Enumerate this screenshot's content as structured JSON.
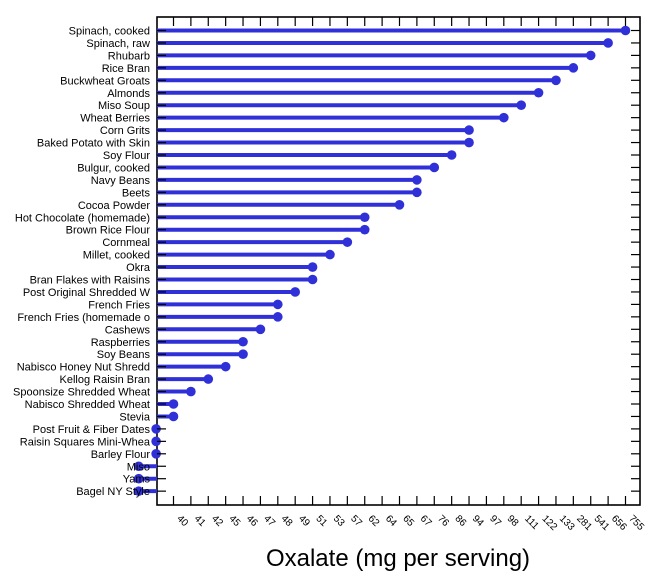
{
  "chart_data": {
    "type": "lollipop",
    "orientation": "horizontal",
    "xlabel": "Oxalate (mg per serving)",
    "ylabel": "",
    "color": "#3030d8",
    "grid": false,
    "x_scale": "ordinal-rank",
    "x_tick_labels": [
      "40",
      "41",
      "42",
      "45",
      "46",
      "47",
      "48",
      "49",
      "51",
      "53",
      "57",
      "62",
      "64",
      "65",
      "67",
      "76",
      "86",
      "94",
      "97",
      "98",
      "111",
      "122",
      "133",
      "281",
      "541",
      "656",
      "755"
    ],
    "categories": [
      "Spinach, cooked",
      "Spinach, raw",
      "Rhubarb",
      "Rice Bran",
      "Buckwheat Groats",
      "Almonds",
      "Miso Soup",
      "Wheat Berries",
      "Corn Grits",
      "Baked Potato with Skin",
      "Soy Flour",
      "Bulgur, cooked",
      "Navy Beans",
      "Beets",
      "Cocoa Powder",
      "Hot Chocolate (homemade)",
      "Brown Rice Flour",
      "Cornmeal",
      "Millet, cooked",
      "Okra",
      "Bran Flakes with Raisins",
      "Post Original Shredded W",
      "French Fries",
      "French Fries (homemade o",
      "Cashews",
      "Raspberries",
      "Soy Beans",
      "Nabisco Honey Nut Shredd",
      "Kellog Raisin Bran",
      "Spoonsize Shredded Wheat",
      "Nabisco Shredded Wheat",
      "Stevia",
      "Post Fruit & Fiber Dates",
      "Raisin Squares Mini-Whea",
      "Barley Flour",
      "Miso",
      "Yams",
      "Bagel NY Style"
    ],
    "values": [
      755,
      656,
      541,
      281,
      133,
      122,
      111,
      98,
      94,
      94,
      86,
      76,
      67,
      67,
      65,
      62,
      62,
      57,
      53,
      51,
      51,
      49,
      48,
      48,
      47,
      46,
      46,
      45,
      42,
      41,
      40,
      40,
      39,
      39,
      39,
      38,
      38,
      38
    ]
  }
}
